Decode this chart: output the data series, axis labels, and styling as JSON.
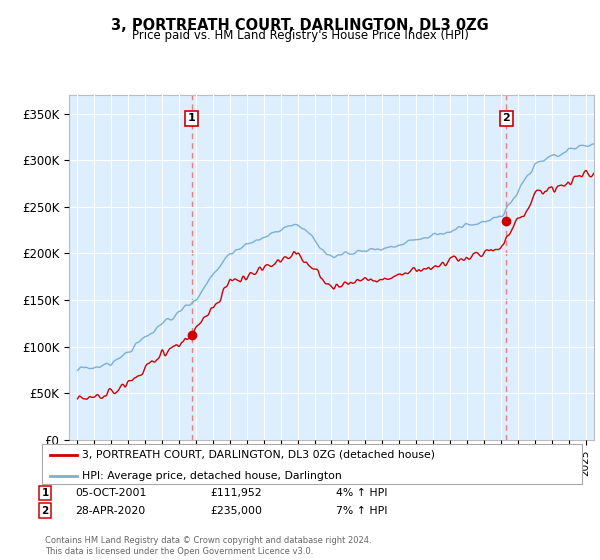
{
  "title": "3, PORTREATH COURT, DARLINGTON, DL3 0ZG",
  "subtitle": "Price paid vs. HM Land Registry's House Price Index (HPI)",
  "ylabel_ticks": [
    "£0",
    "£50K",
    "£100K",
    "£150K",
    "£200K",
    "£250K",
    "£300K",
    "£350K"
  ],
  "ytick_values": [
    0,
    50000,
    100000,
    150000,
    200000,
    250000,
    300000,
    350000
  ],
  "ylim": [
    0,
    370000
  ],
  "xlim_years": [
    1994.5,
    2025.5
  ],
  "sale1": {
    "year": 2001.75,
    "price": 111952,
    "label": "1"
  },
  "sale2": {
    "year": 2020.33,
    "price": 235000,
    "label": "2"
  },
  "legend_line1": "3, PORTREATH COURT, DARLINGTON, DL3 0ZG (detached house)",
  "legend_line2": "HPI: Average price, detached house, Darlington",
  "footer": "Contains HM Land Registry data © Crown copyright and database right 2024.\nThis data is licensed under the Open Government Licence v3.0.",
  "line_color_red": "#cc0000",
  "line_color_blue": "#7ab0d4",
  "vline_color": "#e88080",
  "sale_dot_color": "#cc0000",
  "bg_plot_color": "#ddeeff",
  "background_color": "#ffffff",
  "grid_color": "#ffffff"
}
